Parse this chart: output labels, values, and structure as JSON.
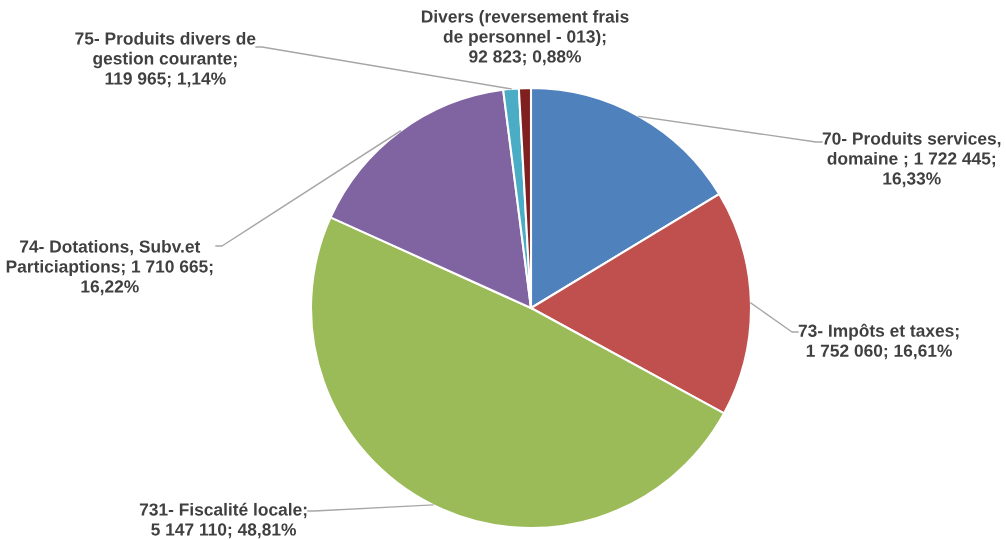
{
  "chart_data": {
    "type": "pie",
    "categories": [
      "70- Produits services,\ndomaine",
      "73- Impôts et taxes",
      "731- Fiscalité locale",
      "74- Dotations, Subv.et\nParticiaptions",
      "75- Produits divers de\ngestion courante",
      "Divers (reversement frais\nde personnel - 013)"
    ],
    "values": [
      1722445,
      1752060,
      5147110,
      1710665,
      119965,
      92823
    ],
    "colors": [
      "#4f81bd",
      "#c0504d",
      "#9bbb59",
      "#8064a2",
      "#4bacc6",
      "#7f1f1f"
    ],
    "value_labels": [
      " ; 1 722 445;\n16,33%",
      ";\n1 752 060; 16,61%",
      ";\n5 147 110; 48,81%",
      "; 1 710 665;\n16,22%",
      ";\n119 965; 1,14%",
      ";\n92 823; 0,88%"
    ]
  }
}
